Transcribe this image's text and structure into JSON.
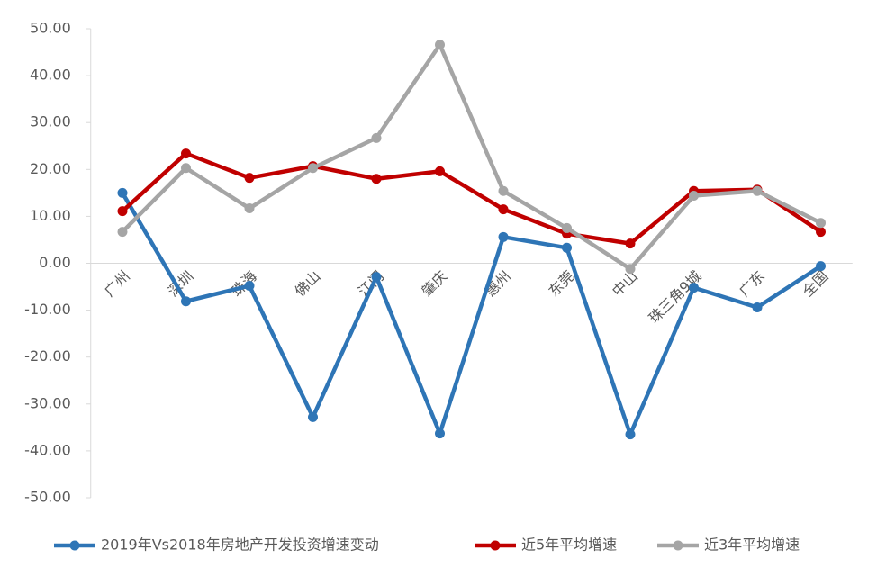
{
  "chart_data": {
    "type": "line",
    "categories": [
      "广州",
      "深圳",
      "珠海",
      "佛山",
      "江门",
      "肇庆",
      "惠州",
      "东莞",
      "中山",
      "珠三角9城",
      "广东",
      "全国"
    ],
    "series": [
      {
        "name": "2019年Vs2018年房地产开发投资增速变动",
        "color": "#2e75b6",
        "values": [
          15.0,
          -8.1,
          -4.8,
          -32.8,
          -2.9,
          -36.3,
          5.6,
          3.3,
          -36.5,
          -5.2,
          -9.4,
          -0.6
        ]
      },
      {
        "name": "近5年平均增速",
        "color": "#c00000",
        "values": [
          11.1,
          23.4,
          18.2,
          20.7,
          18.0,
          19.6,
          11.5,
          6.3,
          4.2,
          15.4,
          15.7,
          6.7
        ]
      },
      {
        "name": "近3年平均增速",
        "color": "#a5a5a5",
        "values": [
          6.7,
          20.3,
          11.7,
          20.3,
          26.7,
          46.6,
          15.4,
          7.5,
          -1.2,
          14.4,
          15.4,
          8.6
        ]
      }
    ],
    "ylim": [
      -50,
      50
    ],
    "yticks": [
      {
        "value": -50,
        "label": "-50.00"
      },
      {
        "value": -40,
        "label": "-40.00"
      },
      {
        "value": -30,
        "label": "-30.00"
      },
      {
        "value": -20,
        "label": "-20.00"
      },
      {
        "value": -10,
        "label": "-10.00"
      },
      {
        "value": 0,
        "label": "0.00"
      },
      {
        "value": 10,
        "label": "10.00"
      },
      {
        "value": 20,
        "label": "20.00"
      },
      {
        "value": 30,
        "label": "30.00"
      },
      {
        "value": 40,
        "label": "40.00"
      },
      {
        "value": 50,
        "label": "50.00"
      }
    ],
    "grid": false,
    "legend": "bottom"
  }
}
